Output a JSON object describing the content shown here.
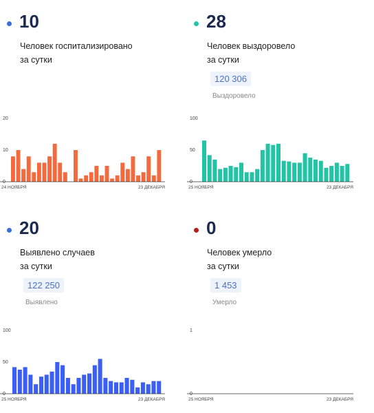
{
  "panels": [
    {
      "number": "10",
      "label_line1": "Человек госпитализировано",
      "label_line2": "за сутки",
      "total": "",
      "total_label": "",
      "dot_color": "#3b6fd6"
    },
    {
      "number": "28",
      "label_line1": "Человек выздоровело",
      "label_line2": "за сутки",
      "total": "120 306",
      "total_label": "Выздоровело",
      "dot_color": "#22c4a5"
    },
    {
      "number": "20",
      "label_line1": "Выявлено случаев",
      "label_line2": "за сутки",
      "total": "122 250",
      "total_label": "Выявлено",
      "dot_color": "#3b6fd6"
    },
    {
      "number": "0",
      "label_line1": "Человек умерло",
      "label_line2": "за сутки",
      "total": "1 453",
      "total_label": "Умерло",
      "dot_color": "#b71c1c"
    }
  ],
  "chart_data": [
    {
      "type": "bar",
      "color": "#f26a3d",
      "yticks": [
        "20",
        "10",
        "0"
      ],
      "ylim": [
        0,
        20
      ],
      "x_start": "24 НОЯБРЯ",
      "x_end": "23 ДЕКАБРЯ",
      "values": [
        8,
        10,
        4,
        8,
        3,
        6,
        6,
        8,
        12,
        6,
        3,
        0,
        10,
        1,
        2,
        3,
        5,
        2,
        5,
        1,
        2,
        6,
        4,
        8,
        2,
        3,
        8,
        2,
        10
      ]
    },
    {
      "type": "bar",
      "color": "#22c4a5",
      "yticks": [
        "100",
        "50",
        "0"
      ],
      "ylim": [
        0,
        100
      ],
      "x_start": "25 НОЯБРЯ",
      "x_end": "23 ДЕКАБРЯ",
      "values": [
        65,
        42,
        35,
        20,
        22,
        25,
        23,
        30,
        15,
        15,
        20,
        50,
        60,
        58,
        60,
        33,
        32,
        30,
        30,
        45,
        38,
        35,
        33,
        22,
        25,
        30,
        25,
        28
      ]
    },
    {
      "type": "bar",
      "color": "#3b5ff5",
      "yticks": [
        "100",
        "50",
        "0"
      ],
      "ylim": [
        0,
        100
      ],
      "x_start": "25 НОЯБРЯ",
      "x_end": "23 ДЕКАБРЯ",
      "values": [
        42,
        38,
        42,
        30,
        15,
        27,
        30,
        35,
        50,
        45,
        25,
        15,
        25,
        30,
        32,
        45,
        55,
        25,
        20,
        18,
        18,
        25,
        22,
        10,
        18,
        15,
        20,
        20
      ]
    },
    {
      "type": "bar",
      "color": "#b71c1c",
      "yticks": [
        "1",
        "0"
      ],
      "ylim": [
        0,
        1
      ],
      "x_start": "25 НОЯБРЯ",
      "x_end": "23 ДЕКАБРЯ",
      "values": []
    }
  ]
}
